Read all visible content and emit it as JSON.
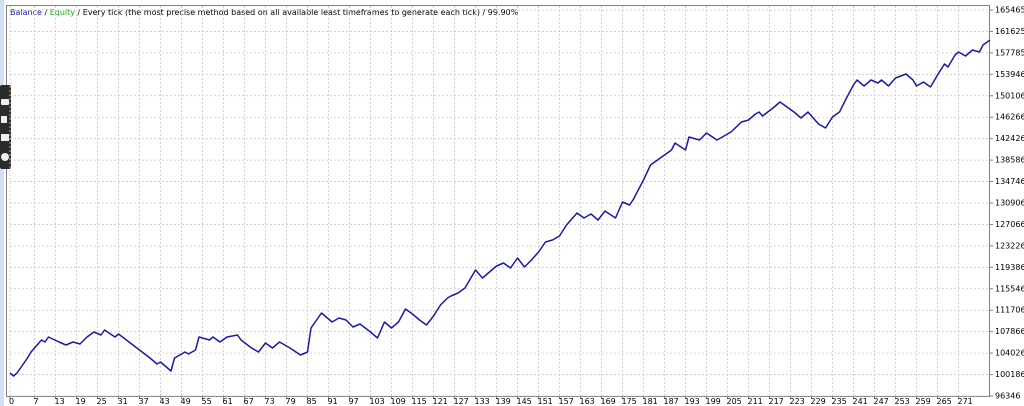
{
  "chart_data": {
    "type": "line",
    "separator": " / ",
    "equity_label": {
      "text": "Equity",
      "color": "#1fae1f"
    },
    "title": "Every tick (the most precise method based on all available least timeframes to generate each tick) / 99.90%",
    "series": [
      {
        "name": "Balance",
        "color": "#1c1c9c",
        "x": [
          0,
          1,
          2,
          3,
          5,
          6,
          9,
          10,
          11,
          14,
          16,
          18,
          20,
          22,
          24,
          26,
          27,
          30,
          31,
          34,
          37,
          40,
          42,
          43,
          46,
          47,
          50,
          51,
          53,
          54,
          57,
          58,
          60,
          62,
          65,
          66,
          69,
          71,
          73,
          75,
          77,
          80,
          83,
          85,
          86,
          89,
          90,
          92,
          94,
          96,
          98,
          100,
          103,
          105,
          107,
          109,
          111,
          113,
          115,
          117,
          119,
          121,
          123,
          125,
          126,
          128,
          130,
          131,
          133,
          135,
          137,
          139,
          141,
          143,
          145,
          147,
          149,
          151,
          153,
          155,
          157,
          159,
          162,
          164,
          166,
          168,
          170,
          173,
          175,
          177,
          178,
          181,
          183,
          185,
          187,
          189,
          190,
          193,
          194,
          197,
          199,
          202,
          203,
          206,
          209,
          211,
          213,
          214,
          215,
          218,
          220,
          222,
          224,
          226,
          228,
          231,
          233,
          235,
          237,
          239,
          241,
          242,
          244,
          246,
          248,
          249,
          251,
          253,
          256,
          258,
          259,
          261,
          263,
          265,
          267,
          268,
          270,
          271,
          273,
          275,
          277,
          278,
          280
        ],
        "values": [
          100465,
          99927,
          100465,
          101360,
          103150,
          104225,
          106373,
          106015,
          106912,
          106015,
          105478,
          106015,
          105657,
          106912,
          107806,
          107269,
          108164,
          106912,
          107448,
          106015,
          104583,
          103150,
          102076,
          102434,
          100823,
          103150,
          104225,
          103867,
          104583,
          106912,
          106373,
          106912,
          106015,
          106912,
          107269,
          106373,
          104940,
          104225,
          105836,
          104940,
          106015,
          104940,
          103688,
          104225,
          108522,
          111208,
          110671,
          109597,
          110313,
          109955,
          108701,
          109238,
          107806,
          106732,
          109597,
          108522,
          109597,
          111924,
          111029,
          109955,
          109059,
          110671,
          112641,
          113895,
          114253,
          114790,
          115685,
          116760,
          118909,
          117476,
          118551,
          119625,
          120162,
          119267,
          121058,
          119446,
          120700,
          122132,
          123923,
          124281,
          124997,
          126967,
          129116,
          128220,
          128937,
          127862,
          129474,
          128220,
          131085,
          130548,
          131443,
          135025,
          137711,
          138606,
          139502,
          140397,
          141651,
          140397,
          142725,
          142188,
          143441,
          142188,
          142546,
          143620,
          145411,
          145769,
          146844,
          147202,
          146486,
          147918,
          148993,
          148097,
          147202,
          146128,
          147202,
          145053,
          144336,
          146306,
          147202,
          149709,
          152037,
          152932,
          151858,
          152932,
          152395,
          152932,
          151858,
          153290,
          154006,
          152932,
          151858,
          152574,
          151679,
          153827,
          155797,
          155260,
          157409,
          157946,
          157230,
          158304,
          157946,
          159200,
          160095
        ]
      }
    ],
    "xlim": [
      0,
      280
    ],
    "xticks": [
      0,
      7,
      13,
      19,
      25,
      31,
      37,
      43,
      49,
      55,
      61,
      67,
      73,
      79,
      85,
      91,
      97,
      103,
      109,
      115,
      121,
      127,
      133,
      139,
      145,
      151,
      157,
      163,
      169,
      175,
      181,
      187,
      193,
      199,
      205,
      211,
      217,
      223,
      229,
      235,
      241,
      247,
      253,
      259,
      265,
      271
    ],
    "ylim": [
      96346,
      165465
    ],
    "yticks": [
      96346,
      100186,
      104026,
      107866,
      111706,
      115546,
      119386,
      123226,
      127066,
      130906,
      134746,
      138586,
      142426,
      146266,
      150106,
      153946,
      157785,
      161625,
      165465
    ],
    "grid": true
  }
}
